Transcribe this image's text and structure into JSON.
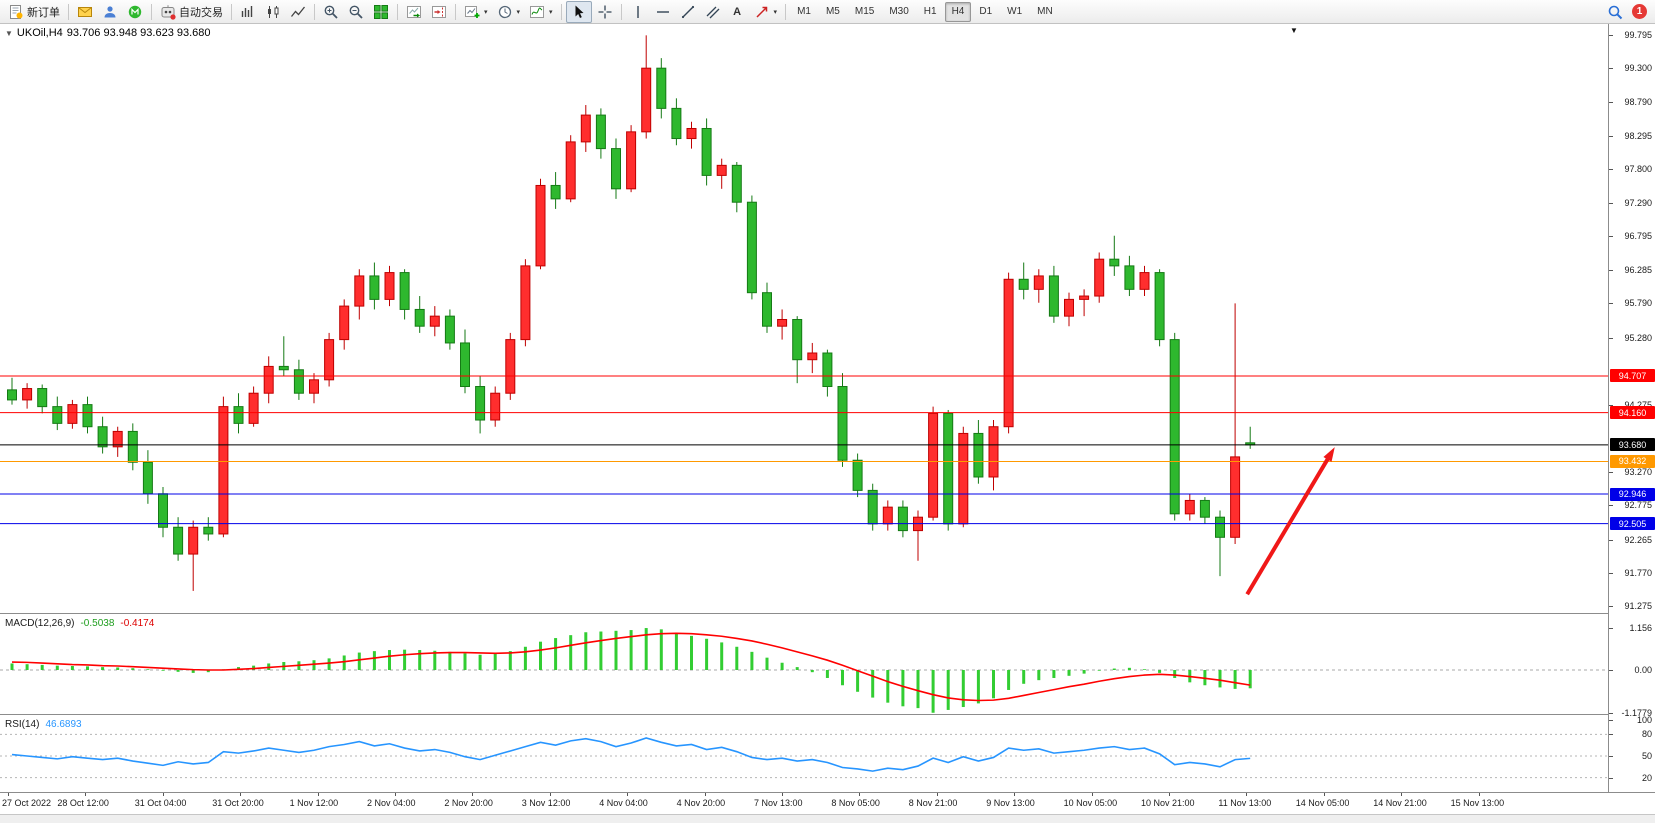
{
  "toolbar": {
    "new_order_label": "新订单",
    "autotrading_label": "自动交易",
    "text_tool_label": "A",
    "timeframes": [
      "M1",
      "M5",
      "M15",
      "M30",
      "H1",
      "H4",
      "D1",
      "W1",
      "MN"
    ],
    "active_timeframe": "H4",
    "notification_count": "1"
  },
  "chart": {
    "title": "UKOil,H4",
    "ohlc": "93.706 93.948 93.623 93.680",
    "macd_label": "MACD(12,26,9)",
    "macd_value": "-0.5038",
    "macd_signal_value": "-0.4174",
    "rsi_label": "RSI(14)",
    "rsi_value": "46.6893"
  },
  "colors": {
    "up_fill": "#ff2e2e",
    "up_stroke": "#bf0000",
    "down_fill": "#2eb82e",
    "down_stroke": "#157a15",
    "macd_hist": "#32cd32",
    "macd_signal": "#ff0000",
    "rsi_line": "#2795ff",
    "arrow": "#f01818",
    "level_red": "#ff0000",
    "level_orange": "#ff9900",
    "level_blue": "#0000e8",
    "level_black": "#000000"
  },
  "chart_data": {
    "type": "candlestick",
    "symbol": "UKOil",
    "timeframe": "H4",
    "price_max": 99.795,
    "price_min": 91.275,
    "price_ticks": [
      "99.795",
      "99.300",
      "98.790",
      "98.295",
      "97.800",
      "97.290",
      "96.795",
      "96.285",
      "95.790",
      "95.280",
      "94.785",
      "94.275",
      "93.780",
      "93.270",
      "92.775",
      "92.265",
      "91.770",
      "91.275"
    ],
    "levels": [
      {
        "price": 94.707,
        "label": "94.707",
        "color": "#ff0000"
      },
      {
        "price": 94.16,
        "label": "94.160",
        "color": "#ff0000"
      },
      {
        "price": 93.68,
        "label": "93.680",
        "color": "#000000",
        "role": "current-price"
      },
      {
        "price": 93.432,
        "label": "93.432",
        "color": "#ff9900"
      },
      {
        "price": 92.946,
        "label": "92.946",
        "color": "#0000e8"
      },
      {
        "price": 92.505,
        "label": "92.505",
        "color": "#0000e8"
      }
    ],
    "time_labels": [
      "27 Oct 2022",
      "28 Oct 12:00",
      "31 Oct 04:00",
      "31 Oct 20:00",
      "1 Nov 12:00",
      "2 Nov 04:00",
      "2 Nov 20:00",
      "3 Nov 12:00",
      "4 Nov 04:00",
      "4 Nov 20:00",
      "7 Nov 13:00",
      "8 Nov 05:00",
      "8 Nov 21:00",
      "9 Nov 13:00",
      "10 Nov 05:00",
      "10 Nov 21:00",
      "11 Nov 13:00",
      "14 Nov 05:00",
      "14 Nov 21:00",
      "15 Nov 13:00"
    ],
    "candles": [
      [
        94.5,
        94.68,
        94.28,
        94.35
      ],
      [
        94.35,
        94.6,
        94.22,
        94.52
      ],
      [
        94.52,
        94.58,
        94.15,
        94.25
      ],
      [
        94.25,
        94.4,
        93.9,
        94.0
      ],
      [
        94.0,
        94.35,
        93.92,
        94.28
      ],
      [
        94.28,
        94.4,
        93.85,
        93.95
      ],
      [
        93.95,
        94.1,
        93.55,
        93.65
      ],
      [
        93.65,
        93.95,
        93.5,
        93.88
      ],
      [
        93.88,
        94.0,
        93.3,
        93.42
      ],
      [
        93.42,
        93.6,
        92.8,
        92.95
      ],
      [
        92.95,
        93.05,
        92.3,
        92.45
      ],
      [
        92.45,
        92.6,
        91.95,
        92.05
      ],
      [
        92.05,
        92.55,
        91.5,
        92.45
      ],
      [
        92.45,
        92.6,
        92.25,
        92.35
      ],
      [
        92.35,
        94.4,
        92.3,
        94.25
      ],
      [
        94.25,
        94.45,
        93.85,
        94.0
      ],
      [
        94.0,
        94.55,
        93.95,
        94.45
      ],
      [
        94.45,
        95.0,
        94.3,
        94.85
      ],
      [
        94.85,
        95.3,
        94.7,
        94.8
      ],
      [
        94.8,
        94.95,
        94.35,
        94.45
      ],
      [
        94.45,
        94.75,
        94.3,
        94.65
      ],
      [
        94.65,
        95.35,
        94.55,
        95.25
      ],
      [
        95.25,
        95.85,
        95.1,
        95.75
      ],
      [
        95.75,
        96.3,
        95.55,
        96.2
      ],
      [
        96.2,
        96.4,
        95.7,
        95.85
      ],
      [
        95.85,
        96.35,
        95.75,
        96.25
      ],
      [
        96.25,
        96.3,
        95.55,
        95.7
      ],
      [
        95.7,
        95.9,
        95.35,
        95.45
      ],
      [
        95.45,
        95.75,
        95.3,
        95.6
      ],
      [
        95.6,
        95.7,
        95.1,
        95.2
      ],
      [
        95.2,
        95.4,
        94.45,
        94.55
      ],
      [
        94.55,
        94.7,
        93.85,
        94.05
      ],
      [
        94.05,
        94.55,
        93.95,
        94.45
      ],
      [
        94.45,
        95.35,
        94.35,
        95.25
      ],
      [
        95.25,
        96.45,
        95.15,
        96.35
      ],
      [
        96.35,
        97.65,
        96.3,
        97.55
      ],
      [
        97.55,
        97.75,
        97.2,
        97.35
      ],
      [
        97.35,
        98.3,
        97.3,
        98.2
      ],
      [
        98.2,
        98.75,
        98.05,
        98.6
      ],
      [
        98.6,
        98.7,
        97.95,
        98.1
      ],
      [
        98.1,
        98.25,
        97.35,
        97.5
      ],
      [
        97.5,
        98.45,
        97.45,
        98.35
      ],
      [
        98.35,
        99.79,
        98.25,
        99.3
      ],
      [
        99.3,
        99.45,
        98.55,
        98.7
      ],
      [
        98.7,
        98.85,
        98.15,
        98.25
      ],
      [
        98.25,
        98.5,
        98.1,
        98.4
      ],
      [
        98.4,
        98.55,
        97.55,
        97.7
      ],
      [
        97.7,
        97.95,
        97.5,
        97.85
      ],
      [
        97.85,
        97.9,
        97.15,
        97.3
      ],
      [
        97.3,
        97.4,
        95.85,
        95.95
      ],
      [
        95.95,
        96.1,
        95.35,
        95.45
      ],
      [
        95.45,
        95.7,
        95.25,
        95.55
      ],
      [
        95.55,
        95.6,
        94.6,
        94.95
      ],
      [
        94.95,
        95.2,
        94.75,
        95.05
      ],
      [
        95.05,
        95.1,
        94.4,
        94.55
      ],
      [
        94.55,
        94.75,
        93.35,
        93.45
      ],
      [
        93.45,
        93.55,
        92.9,
        93.0
      ],
      [
        93.0,
        93.1,
        92.4,
        92.5
      ],
      [
        92.5,
        92.85,
        92.4,
        92.75
      ],
      [
        92.75,
        92.85,
        92.3,
        92.4
      ],
      [
        92.4,
        92.7,
        91.95,
        92.6
      ],
      [
        92.6,
        94.25,
        92.55,
        94.15
      ],
      [
        94.15,
        94.2,
        92.4,
        92.5
      ],
      [
        92.5,
        93.95,
        92.45,
        93.85
      ],
      [
        93.85,
        94.05,
        93.1,
        93.2
      ],
      [
        93.2,
        94.05,
        93.0,
        93.95
      ],
      [
        93.95,
        96.25,
        93.85,
        96.15
      ],
      [
        96.15,
        96.4,
        95.85,
        96.0
      ],
      [
        96.0,
        96.3,
        95.8,
        96.2
      ],
      [
        96.2,
        96.35,
        95.5,
        95.6
      ],
      [
        95.6,
        95.95,
        95.45,
        95.85
      ],
      [
        95.85,
        96.0,
        95.6,
        95.9
      ],
      [
        95.9,
        96.55,
        95.8,
        96.45
      ],
      [
        96.45,
        96.8,
        96.2,
        96.35
      ],
      [
        96.35,
        96.5,
        95.9,
        96.0
      ],
      [
        96.0,
        96.35,
        95.9,
        96.25
      ],
      [
        96.25,
        96.3,
        95.15,
        95.25
      ],
      [
        95.25,
        95.35,
        92.55,
        92.65
      ],
      [
        92.65,
        92.95,
        92.55,
        92.85
      ],
      [
        92.85,
        92.9,
        92.5,
        92.6
      ],
      [
        92.6,
        92.7,
        91.72,
        92.3
      ],
      [
        92.3,
        95.79,
        92.2,
        93.5
      ],
      [
        93.71,
        93.95,
        93.62,
        93.68
      ]
    ],
    "macd": {
      "histogram": [
        0.18,
        0.16,
        0.14,
        0.12,
        0.11,
        0.1,
        0.08,
        0.07,
        0.05,
        0.02,
        -0.02,
        -0.05,
        -0.08,
        -0.06,
        0.02,
        0.08,
        0.12,
        0.18,
        0.22,
        0.24,
        0.27,
        0.32,
        0.4,
        0.48,
        0.52,
        0.55,
        0.56,
        0.55,
        0.53,
        0.5,
        0.46,
        0.42,
        0.44,
        0.52,
        0.64,
        0.78,
        0.88,
        0.96,
        1.04,
        1.06,
        1.08,
        1.1,
        1.156,
        1.12,
        1.02,
        0.94,
        0.86,
        0.76,
        0.64,
        0.5,
        0.34,
        0.2,
        0.08,
        -0.06,
        -0.22,
        -0.42,
        -0.6,
        -0.76,
        -0.9,
        -1.0,
        -1.05,
        -1.178,
        -1.1,
        -1.02,
        -0.92,
        -0.78,
        -0.55,
        -0.38,
        -0.28,
        -0.22,
        -0.16,
        -0.1,
        -0.02,
        0.04,
        0.06,
        0.02,
        -0.08,
        -0.22,
        -0.34,
        -0.42,
        -0.48,
        -0.52,
        -0.504
      ],
      "signal": [
        0.22,
        0.21,
        0.19,
        0.17,
        0.15,
        0.14,
        0.12,
        0.11,
        0.09,
        0.07,
        0.05,
        0.03,
        0.01,
        0.0,
        0.0,
        0.02,
        0.04,
        0.07,
        0.1,
        0.13,
        0.16,
        0.19,
        0.23,
        0.28,
        0.33,
        0.38,
        0.42,
        0.45,
        0.47,
        0.48,
        0.48,
        0.47,
        0.46,
        0.47,
        0.5,
        0.55,
        0.61,
        0.68,
        0.75,
        0.81,
        0.87,
        0.92,
        0.97,
        1.0,
        1.01,
        1.0,
        0.97,
        0.93,
        0.87,
        0.8,
        0.71,
        0.61,
        0.5,
        0.39,
        0.27,
        0.13,
        -0.02,
        -0.17,
        -0.32,
        -0.45,
        -0.57,
        -0.68,
        -0.77,
        -0.82,
        -0.84,
        -0.83,
        -0.78,
        -0.7,
        -0.62,
        -0.54,
        -0.46,
        -0.39,
        -0.31,
        -0.24,
        -0.18,
        -0.14,
        -0.12,
        -0.14,
        -0.18,
        -0.23,
        -0.28,
        -0.35,
        -0.417
      ],
      "axis": [
        {
          "label": "1.156",
          "value": 1.156
        },
        {
          "label": "0.00",
          "value": 0
        },
        {
          "label": "-1.1779",
          "value": -1.1779
        }
      ]
    },
    "rsi": {
      "values": [
        52,
        50,
        48,
        46,
        49,
        47,
        45,
        47,
        43,
        40,
        37,
        42,
        39,
        41,
        56,
        54,
        57,
        61,
        58,
        55,
        58,
        63,
        66,
        70,
        64,
        67,
        61,
        57,
        59,
        55,
        49,
        45,
        51,
        57,
        63,
        69,
        65,
        71,
        74,
        70,
        63,
        68,
        75,
        69,
        64,
        66,
        59,
        62,
        56,
        48,
        45,
        47,
        43,
        45,
        41,
        34,
        32,
        29,
        33,
        31,
        36,
        47,
        41,
        49,
        43,
        48,
        61,
        58,
        60,
        54,
        56,
        58,
        61,
        63,
        59,
        61,
        53,
        38,
        41,
        39,
        35,
        45,
        46.69
      ],
      "axis": [
        {
          "label": "100",
          "value": 100
        },
        {
          "label": "80",
          "value": 80
        },
        {
          "label": "50",
          "value": 50
        },
        {
          "label": "20",
          "value": 20
        }
      ],
      "levels": [
        80,
        50,
        20
      ]
    },
    "arrow": {
      "from_bar": 81.8,
      "from_price": 91.45,
      "to_bar": 87.6,
      "to_price": 93.645
    }
  }
}
